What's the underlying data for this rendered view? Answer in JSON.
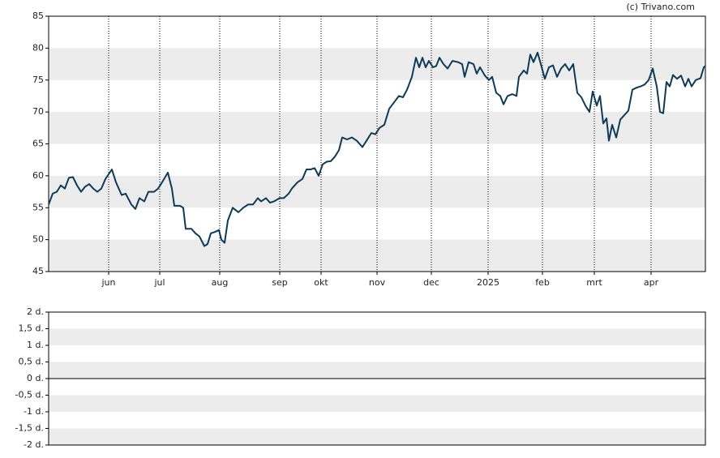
{
  "chart_data": [
    {
      "type": "line",
      "credit": "(c) Trivano.com",
      "color": "#0e3a57",
      "xlim": [
        0,
        162
      ],
      "xticks": [
        {
          "value": 14.8,
          "label": "jun"
        },
        {
          "value": 27.4,
          "label": "jul"
        },
        {
          "value": 42.2,
          "label": "aug"
        },
        {
          "value": 57,
          "label": "sep"
        },
        {
          "value": 67.2,
          "label": "okt"
        },
        {
          "value": 81,
          "label": "nov"
        },
        {
          "value": 94.4,
          "label": "dec"
        },
        {
          "value": 108.4,
          "label": "2025"
        },
        {
          "value": 121.8,
          "label": "feb"
        },
        {
          "value": 134.6,
          "label": "mrt"
        },
        {
          "value": 148.6,
          "label": "apr"
        }
      ],
      "ylim": [
        45,
        85
      ],
      "yticks": [
        45,
        50,
        55,
        60,
        65,
        70,
        75,
        80,
        85
      ],
      "grid": true,
      "x": [
        0,
        1,
        2,
        3,
        4,
        5,
        6,
        7,
        8,
        9,
        10,
        11,
        12,
        13,
        14,
        15.6,
        16.6,
        18,
        19,
        20.4,
        21.4,
        22.4,
        23.6,
        24.6,
        26,
        27,
        28,
        29.4,
        30.4,
        31,
        32.4,
        33.2,
        33.8,
        35.2,
        36.2,
        37.2,
        38.4,
        39.2,
        40,
        41,
        42,
        42.6,
        43.4,
        44.2,
        45.4,
        46.8,
        48,
        49.2,
        50.4,
        51.6,
        52.4,
        53.6,
        54.6,
        55.6,
        57,
        58,
        59.2,
        60,
        61.4,
        62.6,
        63.6,
        64.6,
        65.6,
        66.6,
        67.6,
        68.6,
        69.6,
        70.6,
        71.6,
        72.4,
        73.6,
        74.8,
        76,
        77.4,
        78.4,
        79.6,
        80.6,
        81.6,
        82.8,
        84,
        85.2,
        86.4,
        87.4,
        88.4,
        89.6,
        90.6,
        91.4,
        92.2,
        93,
        93.8,
        94.8,
        95.6,
        96.4,
        97.4,
        98.4,
        99.6,
        101,
        102,
        102.6,
        103.6,
        104.8,
        105.6,
        106.4,
        107.6,
        108.6,
        109.4,
        110.4,
        111.4,
        112.2,
        113.2,
        114.4,
        115.4,
        116,
        117.2,
        118,
        118.8,
        119.6,
        120.6,
        121.4,
        122.4,
        123.4,
        124.4,
        125.4,
        126.4,
        127.4,
        128.4,
        129.4,
        130.4,
        131.4,
        132.4,
        133.4,
        134.2,
        135.2,
        136,
        136.8,
        137.6,
        138.2,
        139,
        140,
        141,
        142,
        143,
        144,
        145,
        146,
        147,
        148,
        149,
        150,
        150.8,
        151.6,
        152.4,
        153.2,
        154,
        155,
        156,
        157,
        157.8,
        158.6,
        159.6,
        160.8,
        161.6,
        162
      ],
      "values": [
        55.5,
        57.2,
        57.5,
        58.5,
        58,
        59.7,
        59.8,
        58.5,
        57.5,
        58.3,
        58.7,
        58,
        57.5,
        58,
        59.5,
        61,
        59,
        57,
        57.2,
        55.5,
        54.8,
        56.5,
        56,
        57.5,
        57.5,
        58,
        59,
        60.5,
        58,
        55.3,
        55.3,
        55,
        51.7,
        51.7,
        51,
        50.5,
        49,
        49.3,
        51,
        51.2,
        51.5,
        50,
        49.5,
        53,
        55,
        54.3,
        55,
        55.5,
        55.5,
        56.5,
        56,
        56.5,
        55.8,
        56,
        56.5,
        56.5,
        57.2,
        58,
        59,
        59.5,
        61,
        61,
        61.2,
        60,
        61.8,
        62.2,
        62.3,
        63,
        64,
        66,
        65.7,
        66,
        65.5,
        64.5,
        65.5,
        66.7,
        66.5,
        67.5,
        68,
        70.5,
        71.5,
        72.5,
        72.3,
        73.5,
        75.5,
        78.5,
        77,
        78.5,
        77,
        78,
        77,
        77.2,
        78.5,
        77.5,
        76.8,
        78,
        77.8,
        77.5,
        75.5,
        77.8,
        77.5,
        76,
        77,
        75.7,
        75,
        75.5,
        73,
        72.5,
        71.2,
        72.5,
        72.8,
        72.5,
        75.5,
        76.5,
        76,
        79,
        77.8,
        79.3,
        77.5,
        75.2,
        77,
        77.3,
        75.5,
        76.8,
        77.5,
        76.5,
        77.5,
        73,
        72.3,
        71,
        70,
        73.2,
        71,
        72.5,
        68.2,
        69,
        65.5,
        68,
        66,
        68.8,
        69.5,
        70.2,
        73.5,
        73.8,
        74,
        74.3,
        75,
        76.8,
        74,
        70,
        69.8,
        74.7,
        74,
        75.8,
        75.2,
        75.7,
        74,
        75.2,
        74,
        75,
        75.3,
        77,
        77.2
      ]
    },
    {
      "type": "line",
      "xlim": [
        0,
        162
      ],
      "ylim": [
        -2,
        2
      ],
      "grid": true,
      "zero_line": true,
      "yticks": [
        {
          "value": -2,
          "label": "-2 d."
        },
        {
          "value": -1.5,
          "label": "-1,5 d."
        },
        {
          "value": -1,
          "label": "-1 d."
        },
        {
          "value": -0.5,
          "label": "-0,5 d."
        },
        {
          "value": 0,
          "label": "0 d."
        },
        {
          "value": 0.5,
          "label": "0,5 d."
        },
        {
          "value": 1,
          "label": "1 d."
        },
        {
          "value": 1.5,
          "label": "1,5 d."
        },
        {
          "value": 2,
          "label": "2 d."
        }
      ]
    }
  ]
}
